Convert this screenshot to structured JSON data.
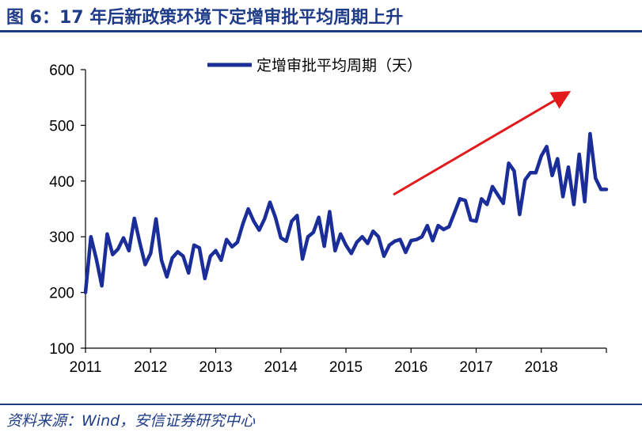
{
  "header": {
    "title": "图 6：17 年后新政策环境下定增审批平均周期上升"
  },
  "footer": {
    "source": "资料来源：Wind，安信证券研究中心"
  },
  "chart_data": {
    "type": "line",
    "ylim": [
      100,
      600
    ],
    "yticks": [
      100,
      200,
      300,
      400,
      500,
      600
    ],
    "xlim": [
      2011,
      2019
    ],
    "xtick_labels": [
      "2011",
      "2012",
      "2013",
      "2014",
      "2015",
      "2016",
      "2017",
      "2018"
    ],
    "legend_position": "top-center",
    "grid": false,
    "annotation": "red upward arrow indicating rising trend",
    "colors": {
      "series": "#1a2d99",
      "arrow": "#e31a1c",
      "axis": "#000000",
      "accent": "#1f3c88"
    },
    "series": [
      {
        "name": "定增审批平均周期（天）",
        "x": [
          2011.0,
          2011.083,
          2011.167,
          2011.25,
          2011.333,
          2011.417,
          2011.5,
          2011.583,
          2011.667,
          2011.75,
          2011.833,
          2011.917,
          2012.0,
          2012.083,
          2012.167,
          2012.25,
          2012.333,
          2012.417,
          2012.5,
          2012.583,
          2012.667,
          2012.75,
          2012.833,
          2012.917,
          2013.0,
          2013.083,
          2013.167,
          2013.25,
          2013.333,
          2013.417,
          2013.5,
          2013.583,
          2013.667,
          2013.75,
          2013.833,
          2013.917,
          2014.0,
          2014.083,
          2014.167,
          2014.25,
          2014.333,
          2014.417,
          2014.5,
          2014.583,
          2014.667,
          2014.75,
          2014.833,
          2014.917,
          2015.0,
          2015.083,
          2015.167,
          2015.25,
          2015.333,
          2015.417,
          2015.5,
          2015.583,
          2015.667,
          2015.75,
          2015.833,
          2015.917,
          2016.0,
          2016.083,
          2016.167,
          2016.25,
          2016.333,
          2016.417,
          2016.5,
          2016.583,
          2016.667,
          2016.75,
          2016.833,
          2016.917,
          2017.0,
          2017.083,
          2017.167,
          2017.25,
          2017.333,
          2017.417,
          2017.5,
          2017.583,
          2017.667,
          2017.75,
          2017.833,
          2017.917,
          2018.0,
          2018.083,
          2018.167,
          2018.25,
          2018.333,
          2018.417,
          2018.5,
          2018.583,
          2018.667,
          2018.75,
          2018.833,
          2018.917,
          2019.0
        ],
        "values": [
          200,
          300,
          260,
          212,
          305,
          268,
          278,
          298,
          275,
          333,
          290,
          250,
          270,
          332,
          258,
          228,
          262,
          273,
          265,
          235,
          285,
          280,
          225,
          265,
          275,
          258,
          295,
          282,
          290,
          323,
          350,
          328,
          312,
          332,
          362,
          335,
          298,
          292,
          328,
          338,
          260,
          300,
          308,
          335,
          283,
          345,
          275,
          305,
          285,
          270,
          290,
          300,
          288,
          310,
          300,
          265,
          285,
          292,
          295,
          272,
          293,
          295,
          300,
          320,
          293,
          320,
          313,
          318,
          343,
          368,
          365,
          330,
          328,
          368,
          358,
          390,
          375,
          360,
          432,
          418,
          340,
          402,
          415,
          415,
          445,
          462,
          410,
          440,
          372,
          425,
          358,
          448,
          363,
          485,
          405,
          385,
          385
        ]
      }
    ]
  }
}
